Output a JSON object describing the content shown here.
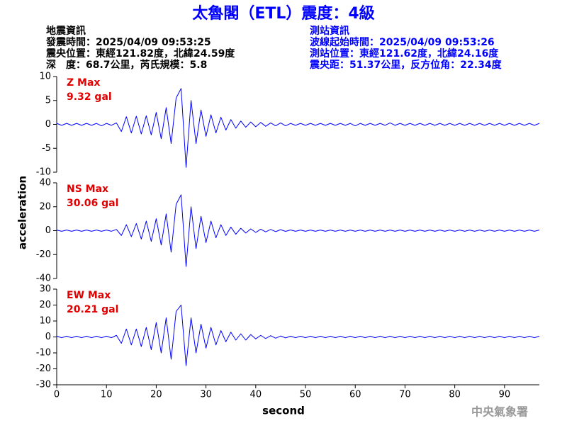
{
  "header": {
    "title": "太魯閣（ETL）震度：4級",
    "left": [
      "地震資訊",
      "發震時間：2025/04/09 09:53:25",
      "震央位置：東經121.82度，北緯24.59度",
      "深　度：68.7公里，芮氏規模：5.8"
    ],
    "right": [
      "測站資訊",
      "波線起始時間：2025/04/09 09:53:26",
      "測站位置：東經121.62度，北緯24.16度",
      "震央距：51.37公里，反方位角：22.34度"
    ]
  },
  "footer": "中央氣象署",
  "axes": {
    "xlabel": "second",
    "ylabel": "acceleration",
    "xlim": [
      0,
      97
    ],
    "xticks": [
      0,
      10,
      20,
      30,
      40,
      50,
      60,
      70,
      80,
      90
    ],
    "x": [
      0,
      1,
      2,
      3,
      4,
      5,
      6,
      7,
      8,
      9,
      10,
      11,
      12,
      13,
      14,
      15,
      16,
      17,
      18,
      19,
      20,
      21,
      22,
      23,
      24,
      25,
      26,
      27,
      28,
      29,
      30,
      31,
      32,
      33,
      34,
      35,
      36,
      37,
      38,
      39,
      40,
      41,
      42,
      43,
      44,
      45,
      46,
      47,
      48,
      49,
      50,
      51,
      52,
      53,
      54,
      55,
      56,
      57,
      58,
      59,
      60,
      61,
      62,
      63,
      64,
      65,
      66,
      67,
      68,
      69,
      70,
      71,
      72,
      73,
      74,
      75,
      76,
      77,
      78,
      79,
      80,
      81,
      82,
      83,
      84,
      85,
      86,
      87,
      88,
      89,
      90,
      91,
      92,
      93,
      94,
      95,
      96,
      97
    ]
  },
  "chart_data": [
    {
      "type": "line",
      "title": "Z Max",
      "max_label": "9.32 gal",
      "color": "#0000ff",
      "ylim": [
        -10,
        10
      ],
      "yticks": [
        10,
        5,
        0,
        -5,
        -10
      ],
      "values": [
        0.2,
        -0.2,
        0.2,
        -0.2,
        0.2,
        -0.2,
        0.2,
        -0.2,
        0.2,
        -0.3,
        0.2,
        -0.2,
        0.3,
        -1.5,
        1.6,
        -1.8,
        1.7,
        -2.0,
        1.8,
        -2.2,
        2.5,
        -3.0,
        3.5,
        -4.0,
        5.5,
        7.5,
        -9.0,
        5.0,
        -4.0,
        3.0,
        -2.5,
        2.0,
        -1.8,
        1.5,
        -1.2,
        1.0,
        -0.8,
        0.7,
        -0.6,
        0.5,
        -0.5,
        0.4,
        -0.4,
        0.3,
        -0.3,
        0.3,
        -0.3,
        0.2,
        -0.2,
        0.2,
        -0.2,
        0.2,
        -0.2,
        0.2,
        -0.2,
        0.2,
        -0.2,
        0.2,
        -0.2,
        0.2,
        -0.3,
        0.2,
        -0.2,
        0.2,
        -0.2,
        0.2,
        -0.2,
        0.3,
        -0.2,
        0.2,
        -0.2,
        0.2,
        -0.2,
        0.2,
        -0.2,
        0.2,
        -0.2,
        0.2,
        -0.2,
        0.2,
        -0.2,
        0.2,
        -0.2,
        0.2,
        -0.2,
        0.2,
        -0.2,
        0.2,
        -0.2,
        0.2,
        -0.2,
        0.2,
        -0.2,
        0.2,
        -0.2,
        0.2,
        -0.2,
        0.2
      ]
    },
    {
      "type": "line",
      "title": "NS Max",
      "max_label": "30.06 gal",
      "color": "#0000ff",
      "ylim": [
        -40,
        40
      ],
      "yticks": [
        40,
        20,
        0,
        -20,
        -40
      ],
      "values": [
        0.5,
        -0.5,
        0.5,
        -0.5,
        0.5,
        -0.5,
        0.5,
        -0.5,
        0.5,
        -0.5,
        0.5,
        -0.5,
        1.0,
        -4,
        5,
        -5,
        6,
        -7,
        8,
        -9,
        10,
        -12,
        14,
        -18,
        22,
        30,
        -30,
        20,
        -15,
        12,
        -10,
        8,
        -6,
        5,
        -4,
        3,
        -3,
        2,
        -2,
        1.5,
        -1.5,
        1.2,
        -1,
        1,
        -0.8,
        0.8,
        -0.6,
        0.6,
        -0.5,
        0.5,
        -0.5,
        0.5,
        -0.5,
        0.5,
        -0.5,
        0.5,
        -0.5,
        0.5,
        -0.5,
        0.5,
        -0.5,
        0.5,
        -0.5,
        0.5,
        -0.5,
        0.5,
        -0.5,
        0.5,
        -0.5,
        0.5,
        -0.5,
        0.5,
        -0.5,
        0.5,
        -0.5,
        0.5,
        -0.5,
        0.5,
        -0.5,
        0.5,
        -0.5,
        0.5,
        -0.5,
        0.5,
        -0.5,
        0.5,
        -0.5,
        0.5,
        -0.5,
        0.5,
        -0.5,
        0.5,
        -0.5,
        0.5,
        -0.5,
        0.5,
        -0.5,
        0.5
      ]
    },
    {
      "type": "line",
      "title": "EW Max",
      "max_label": "20.21 gal",
      "color": "#0000ff",
      "ylim": [
        -30,
        30
      ],
      "yticks": [
        30,
        20,
        10,
        0,
        -10,
        -20,
        -30
      ],
      "values": [
        0.5,
        -0.5,
        0.5,
        -0.5,
        0.5,
        -0.5,
        0.5,
        -0.5,
        0.5,
        -0.5,
        0.5,
        -0.5,
        1.0,
        -4,
        5,
        -5,
        5,
        -6,
        6,
        -8,
        9,
        -10,
        12,
        -14,
        16,
        20,
        -18,
        12,
        -10,
        8,
        -7,
        6,
        -5,
        4,
        -3,
        3,
        -2,
        2,
        -2,
        1.5,
        -1.2,
        1,
        -1,
        0.8,
        -0.8,
        0.6,
        -0.6,
        0.5,
        -0.5,
        0.5,
        -0.5,
        0.5,
        -0.5,
        0.5,
        -0.5,
        0.5,
        -0.5,
        0.5,
        -0.5,
        0.5,
        -0.5,
        0.5,
        -0.5,
        0.5,
        -0.5,
        0.5,
        -0.5,
        0.5,
        -0.5,
        0.5,
        -0.5,
        0.5,
        -0.5,
        0.5,
        -0.5,
        0.5,
        -0.5,
        0.5,
        -0.5,
        0.5,
        -0.5,
        0.5,
        -0.5,
        0.5,
        -0.5,
        0.5,
        -0.5,
        0.5,
        -0.5,
        0.5,
        -0.5,
        0.5,
        -0.5,
        0.5,
        -0.5,
        0.5,
        -0.5,
        0.5
      ]
    }
  ]
}
